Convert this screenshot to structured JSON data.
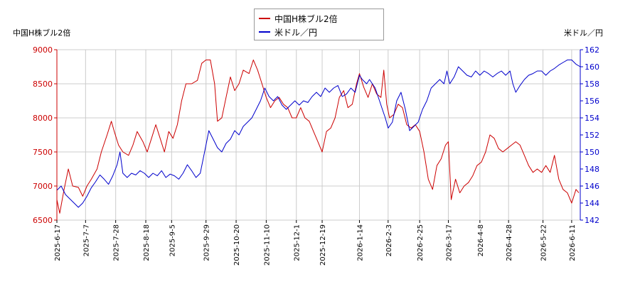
{
  "chart_data": {
    "type": "line",
    "legend_position": "top-center",
    "grid": true,
    "left_axis_title": "中国H株ブル2倍",
    "right_axis_title": "米ドル／円",
    "yticks_left": [
      "6500",
      "7000",
      "7500",
      "8000",
      "8500",
      "9000"
    ],
    "yticks_right": [
      "142",
      "144",
      "146",
      "148",
      "150",
      "152",
      "154",
      "156",
      "158",
      "160",
      "162"
    ],
    "ylim_left": [
      6500,
      9000
    ],
    "ylim_right": [
      142,
      162
    ],
    "xlim": [
      0,
      365
    ],
    "xtick_labels": [
      "2025-6-17",
      "2025-7-7",
      "2025-7-28",
      "2025-8-18",
      "2025-9-5",
      "2025-9-29",
      "2025-10-20",
      "2025-11-10",
      "2025-12-1",
      "2025-12-19",
      "2026-1-14",
      "2026-2-3",
      "2026-2-25",
      "2026-3-17",
      "2026-4-8",
      "2026-4-28",
      "2026-5-22",
      "2026-6-11"
    ],
    "xtick_days": [
      0,
      20,
      41,
      62,
      80,
      104,
      125,
      146,
      167,
      185,
      211,
      231,
      253,
      273,
      295,
      315,
      339,
      359
    ],
    "series": [
      {
        "name": "中国H株ブル2倍",
        "axis": "left",
        "color": "#cc0000",
        "points": [
          [
            0,
            6800
          ],
          [
            2,
            6600
          ],
          [
            5,
            6950
          ],
          [
            8,
            7250
          ],
          [
            11,
            7000
          ],
          [
            15,
            6980
          ],
          [
            18,
            6850
          ],
          [
            21,
            7000
          ],
          [
            24,
            7100
          ],
          [
            28,
            7250
          ],
          [
            31,
            7500
          ],
          [
            35,
            7750
          ],
          [
            38,
            7950
          ],
          [
            40,
            7800
          ],
          [
            43,
            7600
          ],
          [
            46,
            7500
          ],
          [
            50,
            7450
          ],
          [
            53,
            7600
          ],
          [
            56,
            7800
          ],
          [
            60,
            7650
          ],
          [
            63,
            7500
          ],
          [
            66,
            7700
          ],
          [
            69,
            7900
          ],
          [
            72,
            7700
          ],
          [
            75,
            7500
          ],
          [
            78,
            7800
          ],
          [
            81,
            7700
          ],
          [
            84,
            7900
          ],
          [
            87,
            8250
          ],
          [
            90,
            8500
          ],
          [
            94,
            8500
          ],
          [
            98,
            8550
          ],
          [
            101,
            8800
          ],
          [
            104,
            8850
          ],
          [
            107,
            8850
          ],
          [
            110,
            8500
          ],
          [
            112,
            7950
          ],
          [
            115,
            8000
          ],
          [
            118,
            8300
          ],
          [
            121,
            8600
          ],
          [
            124,
            8400
          ],
          [
            127,
            8500
          ],
          [
            130,
            8700
          ],
          [
            134,
            8650
          ],
          [
            137,
            8850
          ],
          [
            140,
            8700
          ],
          [
            143,
            8500
          ],
          [
            146,
            8300
          ],
          [
            149,
            8150
          ],
          [
            152,
            8250
          ],
          [
            155,
            8300
          ],
          [
            158,
            8200
          ],
          [
            161,
            8150
          ],
          [
            164,
            8000
          ],
          [
            167,
            8000
          ],
          [
            170,
            8150
          ],
          [
            173,
            8000
          ],
          [
            176,
            7950
          ],
          [
            179,
            7800
          ],
          [
            182,
            7650
          ],
          [
            185,
            7500
          ],
          [
            188,
            7800
          ],
          [
            191,
            7850
          ],
          [
            194,
            8000
          ],
          [
            197,
            8300
          ],
          [
            200,
            8400
          ],
          [
            203,
            8150
          ],
          [
            206,
            8200
          ],
          [
            209,
            8500
          ],
          [
            211,
            8650
          ],
          [
            214,
            8450
          ],
          [
            217,
            8300
          ],
          [
            220,
            8500
          ],
          [
            223,
            8350
          ],
          [
            226,
            8300
          ],
          [
            228,
            8700
          ],
          [
            230,
            8200
          ],
          [
            232,
            8000
          ],
          [
            235,
            8050
          ],
          [
            238,
            8200
          ],
          [
            241,
            8150
          ],
          [
            244,
            7900
          ],
          [
            247,
            7850
          ],
          [
            250,
            7900
          ],
          [
            253,
            7800
          ],
          [
            256,
            7500
          ],
          [
            259,
            7100
          ],
          [
            262,
            6950
          ],
          [
            265,
            7300
          ],
          [
            268,
            7400
          ],
          [
            271,
            7600
          ],
          [
            273,
            7650
          ],
          [
            275,
            6800
          ],
          [
            278,
            7100
          ],
          [
            281,
            6900
          ],
          [
            284,
            7000
          ],
          [
            287,
            7050
          ],
          [
            290,
            7150
          ],
          [
            293,
            7300
          ],
          [
            296,
            7350
          ],
          [
            299,
            7500
          ],
          [
            302,
            7750
          ],
          [
            305,
            7700
          ],
          [
            308,
            7550
          ],
          [
            311,
            7500
          ],
          [
            314,
            7550
          ],
          [
            317,
            7600
          ],
          [
            320,
            7650
          ],
          [
            323,
            7600
          ],
          [
            326,
            7450
          ],
          [
            329,
            7300
          ],
          [
            332,
            7200
          ],
          [
            335,
            7250
          ],
          [
            338,
            7200
          ],
          [
            341,
            7300
          ],
          [
            344,
            7200
          ],
          [
            347,
            7450
          ],
          [
            350,
            7100
          ],
          [
            353,
            6950
          ],
          [
            356,
            6900
          ],
          [
            359,
            6750
          ],
          [
            362,
            6950
          ],
          [
            364,
            6900
          ]
        ]
      },
      {
        "name": "米ドル／円",
        "axis": "right",
        "color": "#0000cc",
        "points": [
          [
            0,
            145.5
          ],
          [
            3,
            146.0
          ],
          [
            6,
            145.0
          ],
          [
            9,
            144.5
          ],
          [
            12,
            144.0
          ],
          [
            15,
            143.5
          ],
          [
            18,
            144.0
          ],
          [
            21,
            144.8
          ],
          [
            24,
            145.8
          ],
          [
            27,
            146.5
          ],
          [
            30,
            147.3
          ],
          [
            33,
            146.8
          ],
          [
            36,
            146.2
          ],
          [
            39,
            147.2
          ],
          [
            42,
            148.5
          ],
          [
            44,
            150.0
          ],
          [
            46,
            147.5
          ],
          [
            49,
            147.0
          ],
          [
            52,
            147.5
          ],
          [
            55,
            147.3
          ],
          [
            58,
            147.8
          ],
          [
            61,
            147.5
          ],
          [
            64,
            147.0
          ],
          [
            67,
            147.5
          ],
          [
            70,
            147.2
          ],
          [
            73,
            147.8
          ],
          [
            76,
            147.0
          ],
          [
            79,
            147.4
          ],
          [
            82,
            147.2
          ],
          [
            85,
            146.8
          ],
          [
            88,
            147.5
          ],
          [
            91,
            148.5
          ],
          [
            94,
            147.8
          ],
          [
            97,
            147.0
          ],
          [
            100,
            147.5
          ],
          [
            103,
            150.0
          ],
          [
            106,
            152.5
          ],
          [
            109,
            151.5
          ],
          [
            112,
            150.5
          ],
          [
            115,
            150.0
          ],
          [
            118,
            151.0
          ],
          [
            121,
            151.5
          ],
          [
            124,
            152.5
          ],
          [
            127,
            152.0
          ],
          [
            130,
            153.0
          ],
          [
            133,
            153.5
          ],
          [
            136,
            154.0
          ],
          [
            139,
            155.0
          ],
          [
            142,
            156.0
          ],
          [
            145,
            157.5
          ],
          [
            148,
            156.5
          ],
          [
            151,
            156.0
          ],
          [
            154,
            156.5
          ],
          [
            157,
            155.5
          ],
          [
            160,
            155.0
          ],
          [
            163,
            155.5
          ],
          [
            166,
            156.0
          ],
          [
            169,
            155.5
          ],
          [
            172,
            156.0
          ],
          [
            175,
            155.8
          ],
          [
            178,
            156.5
          ],
          [
            181,
            157.0
          ],
          [
            184,
            156.5
          ],
          [
            187,
            157.5
          ],
          [
            190,
            157.0
          ],
          [
            193,
            157.5
          ],
          [
            196,
            157.8
          ],
          [
            199,
            156.5
          ],
          [
            202,
            156.8
          ],
          [
            205,
            157.5
          ],
          [
            208,
            157.0
          ],
          [
            211,
            159.0
          ],
          [
            213,
            158.5
          ],
          [
            216,
            158.0
          ],
          [
            218,
            158.5
          ],
          [
            220,
            158.0
          ],
          [
            222,
            157.5
          ],
          [
            225,
            156.0
          ],
          [
            227,
            155.0
          ],
          [
            229,
            154.0
          ],
          [
            231,
            152.8
          ],
          [
            234,
            153.5
          ],
          [
            237,
            156.0
          ],
          [
            240,
            157.0
          ],
          [
            243,
            155.0
          ],
          [
            246,
            152.5
          ],
          [
            249,
            153.0
          ],
          [
            252,
            153.5
          ],
          [
            255,
            155.0
          ],
          [
            258,
            156.0
          ],
          [
            261,
            157.5
          ],
          [
            264,
            158.0
          ],
          [
            267,
            158.5
          ],
          [
            270,
            158.0
          ],
          [
            272,
            159.5
          ],
          [
            274,
            158.0
          ],
          [
            277,
            158.8
          ],
          [
            280,
            160.0
          ],
          [
            283,
            159.5
          ],
          [
            286,
            159.0
          ],
          [
            289,
            158.8
          ],
          [
            292,
            159.5
          ],
          [
            295,
            159.0
          ],
          [
            298,
            159.5
          ],
          [
            301,
            159.2
          ],
          [
            304,
            158.8
          ],
          [
            307,
            159.2
          ],
          [
            310,
            159.5
          ],
          [
            313,
            159.0
          ],
          [
            316,
            159.5
          ],
          [
            318,
            158.0
          ],
          [
            320,
            157.0
          ],
          [
            323,
            157.8
          ],
          [
            326,
            158.5
          ],
          [
            329,
            159.0
          ],
          [
            332,
            159.2
          ],
          [
            335,
            159.5
          ],
          [
            338,
            159.5
          ],
          [
            341,
            159.0
          ],
          [
            344,
            159.5
          ],
          [
            347,
            159.8
          ],
          [
            350,
            160.2
          ],
          [
            353,
            160.5
          ],
          [
            356,
            160.8
          ],
          [
            359,
            160.8
          ],
          [
            362,
            160.3
          ],
          [
            365,
            160.0
          ]
        ]
      }
    ]
  }
}
